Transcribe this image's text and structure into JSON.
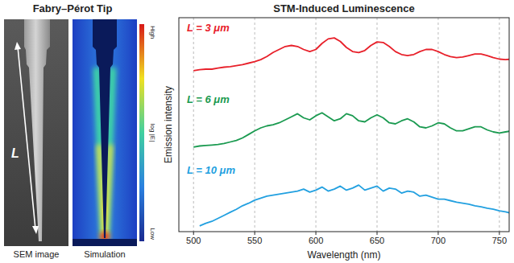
{
  "left_panel": {
    "title": "Fabry–Pérot Tip",
    "images": [
      {
        "label": "SEM image"
      },
      {
        "label": "Simulation"
      }
    ],
    "length_symbol": "L",
    "colorbar": {
      "title": "log |E|",
      "high": "High",
      "low": "Low"
    }
  },
  "chart_data": {
    "type": "line",
    "title": "STM-Induced Luminescence",
    "x_label": "Wavelength (nm)",
    "y_label": "Emission intensity",
    "xlim": [
      488,
      758
    ],
    "xticks": [
      500,
      550,
      600,
      650,
      700,
      750
    ],
    "ylim": [
      0,
      1
    ],
    "grid": true,
    "tick_labels": "x",
    "x": [
      500,
      505,
      510,
      515,
      520,
      525,
      530,
      535,
      540,
      545,
      550,
      555,
      560,
      565,
      570,
      575,
      580,
      585,
      590,
      595,
      600,
      605,
      610,
      615,
      620,
      625,
      630,
      635,
      640,
      645,
      650,
      655,
      660,
      665,
      670,
      675,
      680,
      685,
      690,
      695,
      700,
      705,
      710,
      715,
      720,
      725,
      730,
      735,
      740,
      745,
      750,
      755,
      760
    ],
    "series": [
      {
        "name": "L = 3 μm",
        "color": "#e8202a",
        "values": [
          0.3,
          0.32,
          0.33,
          0.33,
          0.35,
          0.37,
          0.38,
          0.4,
          0.42,
          0.45,
          0.48,
          0.52,
          0.58,
          0.66,
          0.72,
          0.78,
          0.8,
          0.78,
          0.72,
          0.68,
          0.72,
          0.84,
          0.93,
          0.95,
          0.88,
          0.76,
          0.68,
          0.66,
          0.7,
          0.8,
          0.87,
          0.86,
          0.78,
          0.68,
          0.62,
          0.6,
          0.62,
          0.68,
          0.72,
          0.72,
          0.68,
          0.62,
          0.58,
          0.56,
          0.57,
          0.6,
          0.63,
          0.63,
          0.6,
          0.56,
          0.53,
          0.52,
          0.53
        ]
      },
      {
        "name": "L = 6 μm",
        "color": "#1a9a50",
        "values": [
          0.2,
          0.22,
          0.23,
          0.24,
          0.25,
          0.27,
          0.3,
          0.33,
          0.38,
          0.45,
          0.52,
          0.58,
          0.62,
          0.64,
          0.68,
          0.74,
          0.8,
          0.86,
          0.78,
          0.74,
          0.82,
          0.88,
          0.8,
          0.72,
          0.76,
          0.86,
          0.82,
          0.72,
          0.7,
          0.78,
          0.84,
          0.78,
          0.68,
          0.66,
          0.72,
          0.76,
          0.7,
          0.6,
          0.58,
          0.62,
          0.68,
          0.66,
          0.58,
          0.52,
          0.52,
          0.56,
          0.6,
          0.6,
          0.54,
          0.5,
          0.48,
          0.5,
          0.52
        ]
      },
      {
        "name": "L = 10 μm",
        "color": "#22a0e0",
        "values": [
          null,
          0.05,
          0.1,
          0.14,
          0.2,
          0.26,
          0.32,
          0.38,
          0.45,
          0.5,
          0.56,
          0.6,
          0.64,
          0.66,
          0.68,
          0.7,
          0.72,
          0.74,
          0.78,
          0.72,
          0.76,
          0.82,
          0.74,
          0.78,
          0.84,
          0.76,
          0.8,
          0.86,
          0.76,
          0.8,
          0.84,
          0.74,
          0.8,
          0.78,
          0.7,
          0.74,
          0.72,
          0.64,
          0.66,
          0.62,
          0.58,
          0.58,
          0.55,
          0.52,
          0.5,
          0.48,
          0.45,
          0.43,
          0.4,
          0.38,
          0.35,
          0.33,
          0.3
        ]
      }
    ]
  }
}
